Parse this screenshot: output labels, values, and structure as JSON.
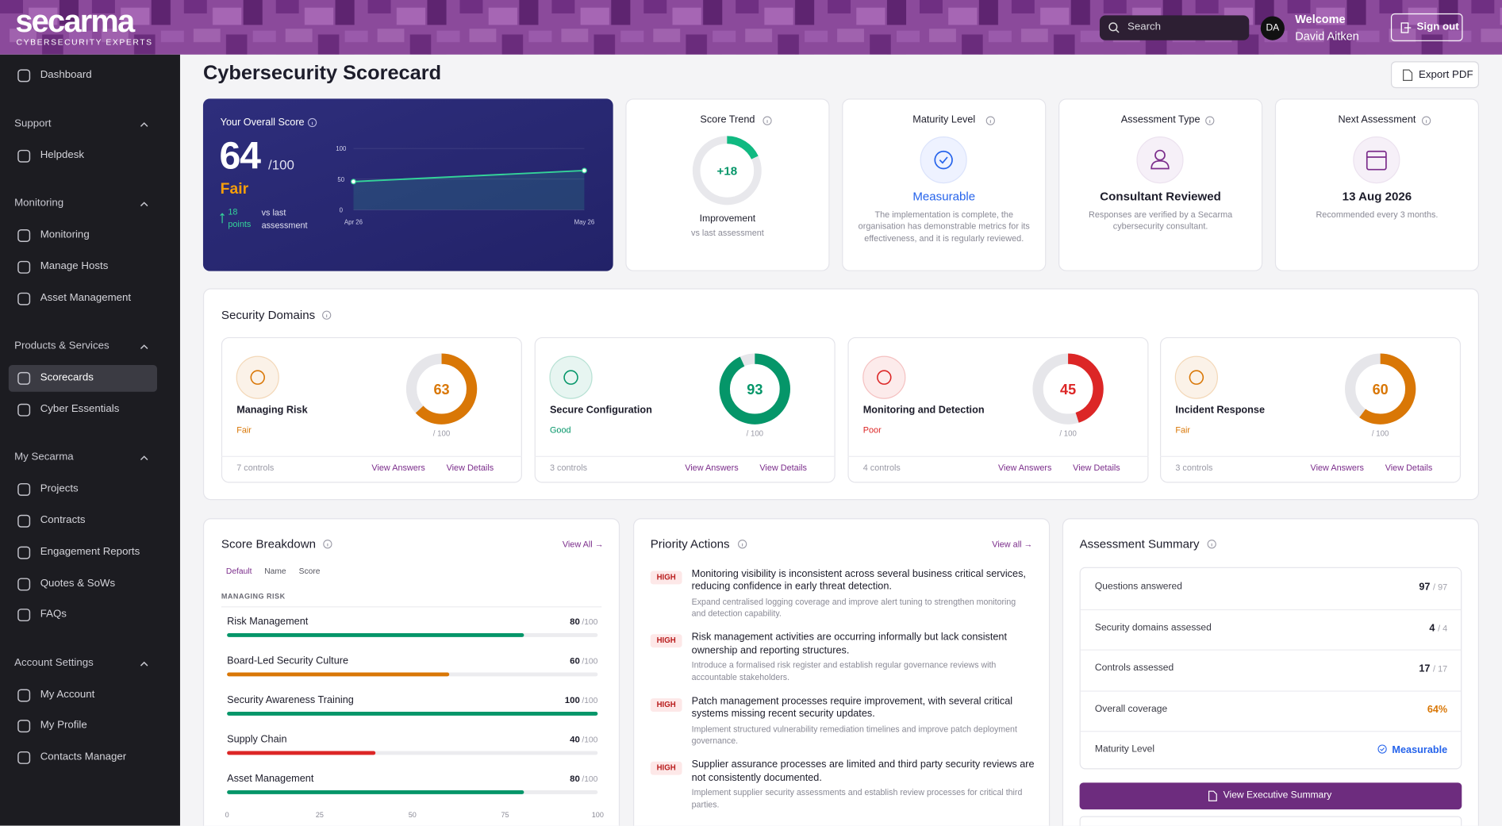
{
  "header": {
    "logo": "secarma",
    "tagline": "CYBERSECURITY EXPERTS",
    "search": "Search",
    "avatar": "DA",
    "welcome": "Welcome",
    "user": "David Aitken",
    "sign_out": "Sign out"
  },
  "sidebar": {
    "top": "Dashboard",
    "sections": [
      {
        "title": "Support",
        "items": [
          {
            "label": "Helpdesk"
          }
        ]
      },
      {
        "title": "Monitoring",
        "items": [
          {
            "label": "Monitoring"
          },
          {
            "label": "Manage Hosts"
          },
          {
            "label": "Asset Management"
          }
        ]
      },
      {
        "title": "Products & Services",
        "items": [
          {
            "label": "Scorecards",
            "active": true
          },
          {
            "label": "Cyber Essentials"
          }
        ]
      },
      {
        "title": "My Secarma",
        "items": [
          {
            "label": "Projects"
          },
          {
            "label": "Contracts"
          },
          {
            "label": "Engagement Reports"
          },
          {
            "label": "Quotes & SoWs"
          },
          {
            "label": "FAQs"
          }
        ]
      },
      {
        "title": "Account Settings",
        "items": [
          {
            "label": "My Account"
          },
          {
            "label": "My Profile"
          },
          {
            "label": "Contacts Manager"
          }
        ]
      }
    ]
  },
  "page": {
    "title": "Cybersecurity Scorecard",
    "export": "Export PDF"
  },
  "overall": {
    "label": "Your Overall Score",
    "score": 64,
    "out_of": {
      "value": 100,
      "label": "/100"
    },
    "rating": "Fair",
    "change": 18,
    "change_unit": "points",
    "change_text": "vs last assessment"
  },
  "chart_data": {
    "type": "area",
    "x": [
      "Apr 26",
      "May 26"
    ],
    "values": [
      46,
      64
    ],
    "ylim": [
      0,
      100
    ],
    "yticks": [
      0,
      50,
      100
    ],
    "color": "#34d399"
  },
  "cards": [
    {
      "title": "Score Trend",
      "value": {
        "value": 18,
        "label": "+18"
      },
      "heading": "Improvement",
      "text": "vs last assessment"
    },
    {
      "title": "Maturity Level",
      "heading": "Measurable",
      "text": "The implementation is complete, the organisation has demonstrable metrics for its effectiveness, and it is regularly reviewed."
    },
    {
      "title": "Assessment Type",
      "heading": "Consultant Reviewed",
      "text": "Responses are verified by a Secarma cybersecurity consultant."
    },
    {
      "title": "Next Assessment",
      "heading": "13 Aug 2026",
      "text": "Recommended every 3 months."
    }
  ],
  "domains": {
    "title": "Security Domains",
    "out_of": {
      "value": 100,
      "label": "/ 100"
    },
    "view_answers": "View Answers",
    "view_details": "View Details",
    "items": [
      {
        "name": "Managing Risk",
        "score": 63,
        "rating": "Fair",
        "controls": "7 controls",
        "color": "#d97706"
      },
      {
        "name": "Secure Configuration",
        "score": 93,
        "rating": "Good",
        "controls": "3 controls",
        "color": "#059669"
      },
      {
        "name": "Monitoring and Detection",
        "score": 45,
        "rating": "Poor",
        "controls": "4 controls",
        "color": "#dc2626"
      },
      {
        "name": "Incident Response",
        "score": 60,
        "rating": "Fair",
        "controls": "3 controls",
        "color": "#d97706"
      }
    ]
  },
  "breakdown": {
    "title": "Score Breakdown",
    "view_all": "View All →",
    "tabs": [
      "Default",
      "Name",
      "Score"
    ],
    "group": "MANAGING RISK",
    "out_of": {
      "value": 100,
      "label": "/100"
    },
    "xlim": [
      0,
      100
    ],
    "xticks": [
      0,
      25,
      50,
      75,
      100
    ],
    "items": [
      {
        "name": "Risk Management",
        "score": 80,
        "color": "#059669"
      },
      {
        "name": "Board-Led Security Culture",
        "score": 60,
        "color": "#d97706"
      },
      {
        "name": "Security Awareness Training",
        "score": 100,
        "color": "#059669"
      },
      {
        "name": "Supply Chain",
        "score": 40,
        "color": "#dc2626"
      },
      {
        "name": "Asset Management",
        "score": 80,
        "color": "#059669"
      }
    ]
  },
  "actions": {
    "title": "Priority Actions",
    "view_all": "View all →",
    "items": [
      {
        "priority": "HIGH",
        "title": "Monitoring visibility is inconsistent across several business critical services, reducing confidence in early threat detection.",
        "detail": "Expand centralised logging coverage and improve alert tuning to strengthen monitoring and detection capability."
      },
      {
        "priority": "HIGH",
        "title": "Risk management activities are occurring informally but lack consistent ownership and reporting structures.",
        "detail": "Introduce a formalised risk register and establish regular governance reviews with accountable stakeholders."
      },
      {
        "priority": "HIGH",
        "title": "Patch management processes require improvement, with several critical systems missing recent security updates.",
        "detail": "Implement structured vulnerability remediation timelines and improve patch deployment governance."
      },
      {
        "priority": "HIGH",
        "title": "Supplier assurance processes are limited and third party security reviews are not consistently documented.",
        "detail": "Implement supplier security assessments and establish review processes for critical third parties."
      }
    ]
  },
  "summary": {
    "title": "Assessment Summary",
    "rows": [
      {
        "label": "Questions answered",
        "value": 97,
        "total": "/ 97"
      },
      {
        "label": "Security domains assessed",
        "value": 4,
        "total": "/ 4"
      },
      {
        "label": "Controls assessed",
        "value": 17,
        "total": "/ 17"
      },
      {
        "label": "Overall coverage",
        "value": {
          "value": 64,
          "label": "64%"
        }
      },
      {
        "label": "Maturity Level",
        "value": "Measurable"
      }
    ],
    "button": "View Executive Summary"
  }
}
